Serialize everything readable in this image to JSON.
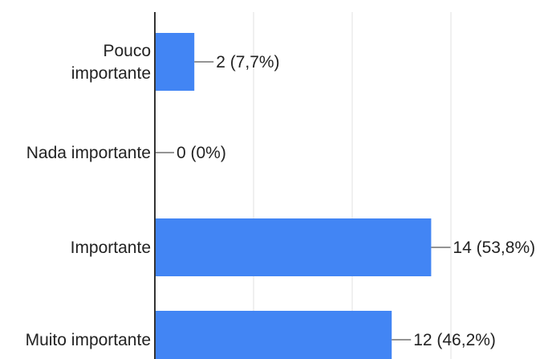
{
  "chart_data": {
    "type": "bar",
    "orientation": "horizontal",
    "categories": [
      [
        "Pouco",
        "importante"
      ],
      [
        "Nada importante"
      ],
      [
        "Importante"
      ],
      [
        "Muito importante"
      ]
    ],
    "values": [
      2,
      0,
      14,
      12
    ],
    "data_labels": [
      "2 (7,7%)",
      "0 (0%)",
      "14 (53,8%)",
      "12 (46,2%)"
    ],
    "xlim": [
      0,
      16
    ],
    "grid": true,
    "bar_color": "#4285f4"
  }
}
